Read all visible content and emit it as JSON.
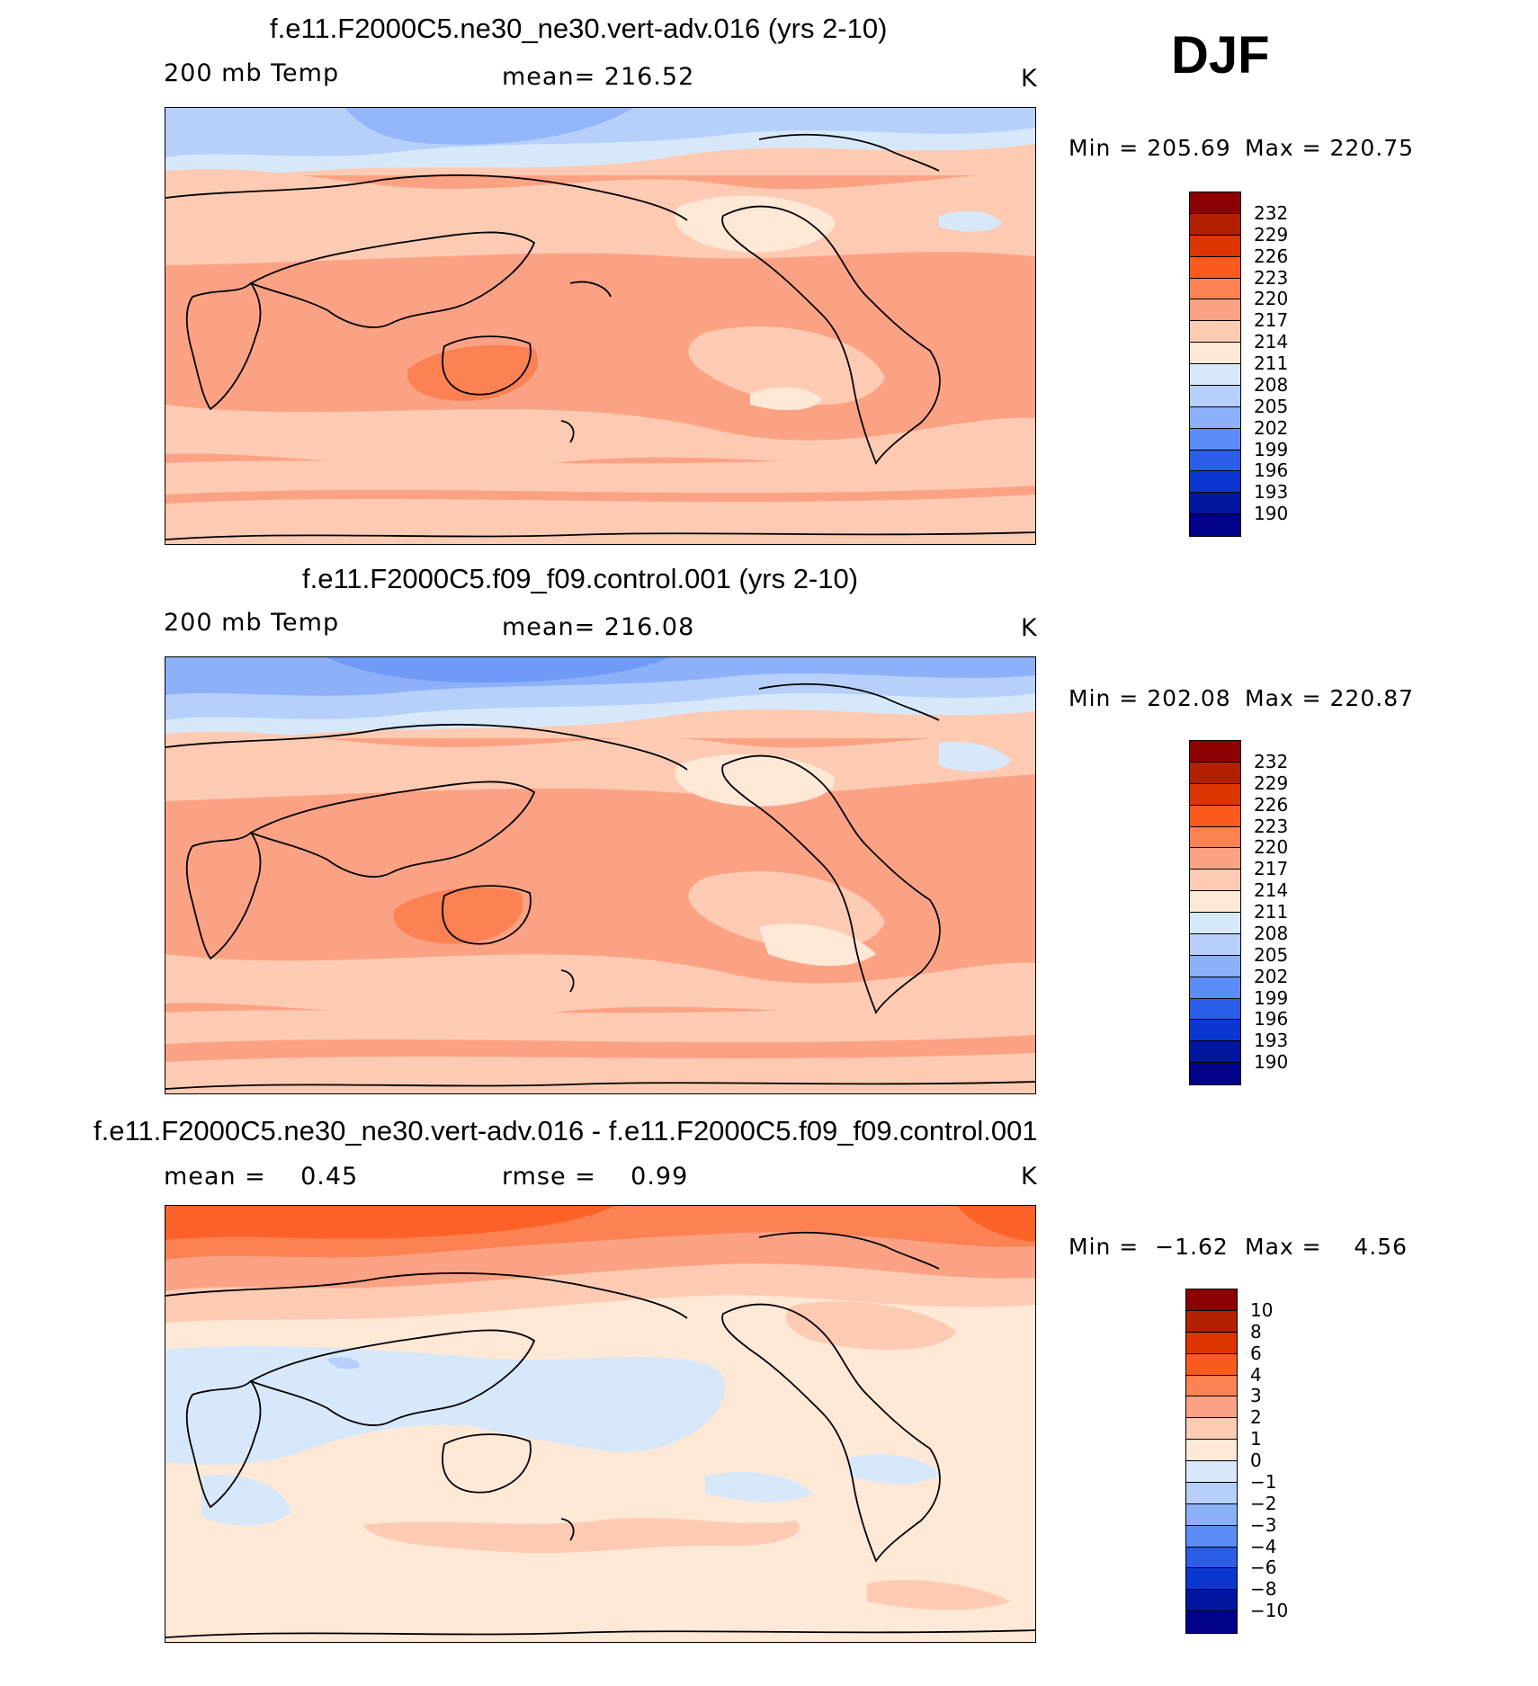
{
  "season": "DJF",
  "panels": [
    {
      "title": "f.e11.F2000C5.ne30_ne30.vert-adv.016 (yrs 2-10)",
      "left_label": "200 mb Temp",
      "center_label": "mean= 216.52",
      "units": "K",
      "min_text": "Min = 205.69",
      "max_text": "Max = 220.75",
      "colorbar_labels": [
        "232",
        "229",
        "226",
        "223",
        "220",
        "217",
        "214",
        "211",
        "208",
        "205",
        "202",
        "199",
        "196",
        "193",
        "190"
      ],
      "colorbar_colors": [
        "#8b0000",
        "#b22000",
        "#dd3500",
        "#fb5a1d",
        "#fc8253",
        "#fca284",
        "#fdcbb3",
        "#fee8d6",
        "#d7e8fb",
        "#b6d0fb",
        "#8cb1f8",
        "#5c8cf7",
        "#2a5de8",
        "#0b37d1",
        "#00169f",
        "#000089"
      ]
    },
    {
      "title": "f.e11.F2000C5.f09_f09.control.001 (yrs 2-10)",
      "left_label": "200 mb Temp",
      "center_label": "mean= 216.08",
      "units": "K",
      "min_text": "Min = 202.08",
      "max_text": "Max = 220.87",
      "colorbar_labels": [
        "232",
        "229",
        "226",
        "223",
        "220",
        "217",
        "214",
        "211",
        "208",
        "205",
        "202",
        "199",
        "196",
        "193",
        "190"
      ],
      "colorbar_colors": [
        "#8b0000",
        "#b22000",
        "#dd3500",
        "#fb5a1d",
        "#fc8253",
        "#fca284",
        "#fdcbb3",
        "#fee8d6",
        "#d7e8fb",
        "#b6d0fb",
        "#8cb1f8",
        "#5c8cf7",
        "#2a5de8",
        "#0b37d1",
        "#00169f",
        "#000089"
      ]
    },
    {
      "title": "f.e11.F2000C5.ne30_ne30.vert-adv.016 - f.e11.F2000C5.f09_f09.control.001",
      "left_label": "mean =    0.45",
      "center_label": "rmse =    0.99",
      "units": "K",
      "min_text": "Min =  −1.62",
      "max_text": "Max =    4.56",
      "colorbar_labels": [
        "10",
        "8",
        "6",
        "4",
        "3",
        "2",
        "1",
        "0",
        "−1",
        "−2",
        "−3",
        "−4",
        "−6",
        "−8",
        "−10"
      ],
      "colorbar_colors": [
        "#8b0000",
        "#b22000",
        "#dd3500",
        "#fb5a1d",
        "#fc8253",
        "#fca284",
        "#fdcbb3",
        "#fee8d6",
        "#d7e8fb",
        "#b6d0fb",
        "#8cb1f8",
        "#5c8cf7",
        "#2a5de8",
        "#0b37d1",
        "#00169f",
        "#000089"
      ]
    }
  ]
}
